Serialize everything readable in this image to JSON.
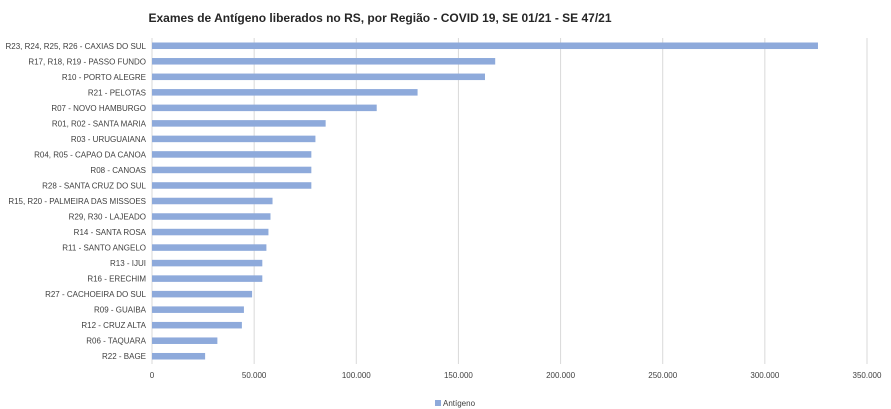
{
  "chart_data": {
    "type": "bar",
    "orientation": "horizontal",
    "title": "Exames de Antígeno liberados no RS, por Região - COVID 19, SE 01/21 - SE 47/21",
    "xlabel": "",
    "ylabel": "",
    "xlim": [
      0,
      350000
    ],
    "x_ticks": [
      0,
      50000,
      100000,
      150000,
      200000,
      250000,
      300000,
      350000
    ],
    "x_tick_labels": [
      "0",
      "50.000",
      "100.000",
      "150.000",
      "200.000",
      "250.000",
      "300.000",
      "350.000"
    ],
    "grid": true,
    "legend_position": "bottom",
    "categories": [
      "R23, R24, R25, R26 - CAXIAS DO SUL",
      "R17, R18, R19 - PASSO FUNDO",
      "R10 - PORTO ALEGRE",
      "R21 - PELOTAS",
      "R07 - NOVO HAMBURGO",
      "R01, R02 - SANTA MARIA",
      "R03 - URUGUAIANA",
      "R04, R05 - CAPAO DA CANOA",
      "R08 - CANOAS",
      "R28 - SANTA CRUZ DO SUL",
      "R15, R20 - PALMEIRA DAS MISSOES",
      "R29, R30 - LAJEADO",
      "R14 - SANTA ROSA",
      "R11 - SANTO ANGELO",
      "R13 - IJUI",
      "R16 - ERECHIM",
      "R27 - CACHOEIRA DO SUL",
      "R09 - GUAIBA",
      "R12 - CRUZ ALTA",
      "R06 - TAQUARA",
      "R22 - BAGE"
    ],
    "series": [
      {
        "name": "Antígeno",
        "color": "#8eaadb",
        "values": [
          326000,
          168000,
          163000,
          130000,
          110000,
          85000,
          80000,
          78000,
          78000,
          78000,
          59000,
          58000,
          57000,
          56000,
          54000,
          54000,
          49000,
          45000,
          44000,
          32000,
          26000
        ]
      }
    ]
  }
}
